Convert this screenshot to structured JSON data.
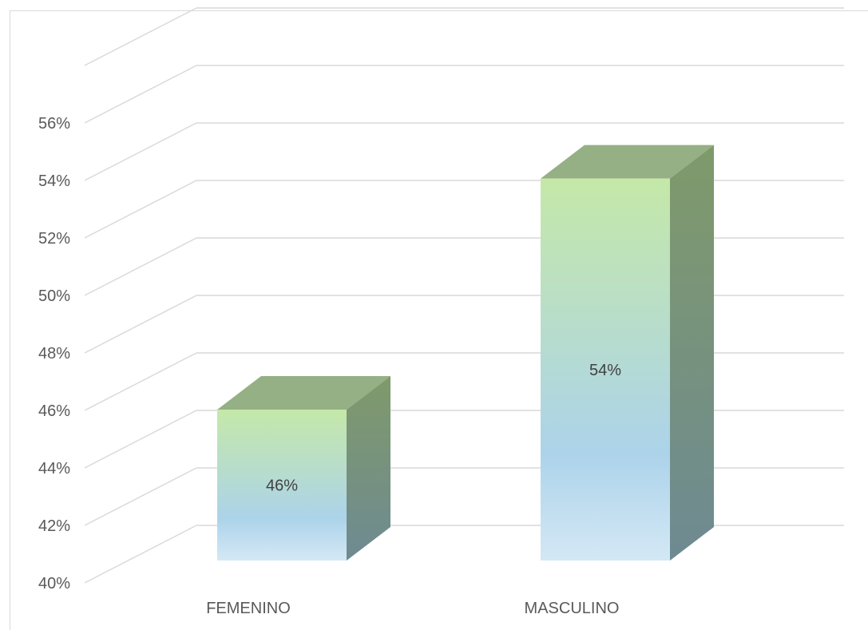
{
  "chart_data": {
    "type": "bar",
    "style": "3d-column",
    "categories": [
      "FEMENINO",
      "MASCULINO"
    ],
    "values": [
      46,
      54
    ],
    "data_labels": [
      "46%",
      "54%"
    ],
    "ylim": [
      40,
      56
    ],
    "yticks": [
      40,
      42,
      44,
      46,
      48,
      50,
      52,
      54,
      56
    ],
    "ytick_labels": [
      "40%",
      "42%",
      "44%",
      "46%",
      "48%",
      "50%",
      "52%",
      "54%",
      "56%"
    ],
    "grid": true,
    "legend": "none",
    "colors": {
      "bar_top": "#c5e8a8",
      "bar_bottom": "#acd3ea",
      "bar_side": "#6e8a92",
      "bar_cap": "#94b084",
      "grid": "#d9d9d9",
      "text": "#595959"
    }
  }
}
